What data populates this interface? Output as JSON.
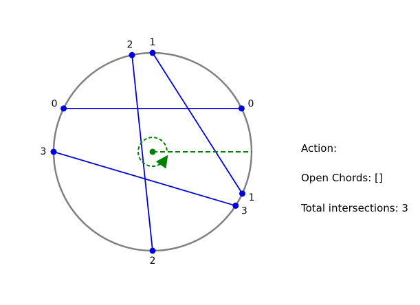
{
  "diagram": {
    "colors": {
      "circle": "#808080",
      "chord": "#0000dd",
      "endpoint": "#0000dd",
      "sweep": "#008000"
    },
    "endpoints": [
      {
        "label": "1",
        "angle_deg": 90
      },
      {
        "label": "2",
        "angle_deg": 102
      },
      {
        "label": "0",
        "angle_deg": 154
      },
      {
        "label": "3",
        "angle_deg": 180
      },
      {
        "label": "2",
        "angle_deg": 270
      },
      {
        "label": "3",
        "angle_deg": 327
      },
      {
        "label": "1",
        "angle_deg": 335
      },
      {
        "label": "0",
        "angle_deg": 26
      }
    ],
    "chords": [
      {
        "from": 0,
        "to": 6
      },
      {
        "from": 1,
        "to": 4
      },
      {
        "from": 2,
        "to": 7
      },
      {
        "from": 3,
        "to": 5
      }
    ],
    "sweep": {
      "angle_deg": 0,
      "rotation": "counter-clockwise"
    }
  },
  "status": {
    "action": "Action:",
    "open_chords": "Open Chords: []",
    "total_intersections": "Total intersections: 3"
  }
}
